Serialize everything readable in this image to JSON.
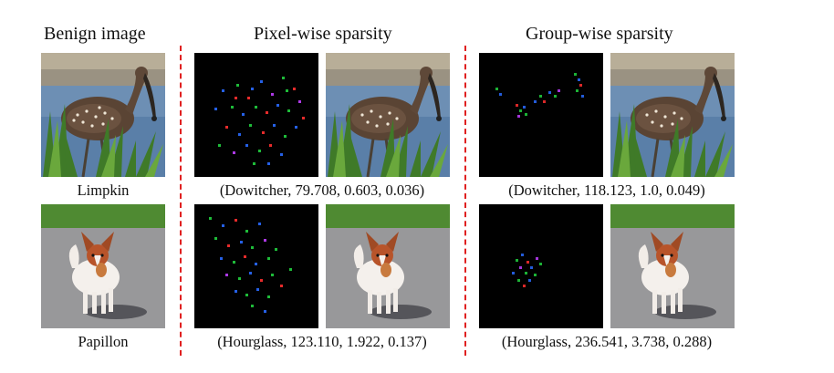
{
  "headers": {
    "benign": "Benign image",
    "pixel": "Pixel-wise sparsity",
    "group": "Group-wise sparsity"
  },
  "rows": [
    {
      "label": "Limpkin",
      "pixel_caption": "(Dowitcher, 79.708, 0.603, 0.036)",
      "group_caption": "(Dowitcher, 118.123, 1.0, 0.049)"
    },
    {
      "label": "Papillon",
      "pixel_caption": "(Hourglass, 123.110, 1.922, 0.137)",
      "group_caption": "(Hourglass, 236.541, 3.738, 0.288)"
    }
  ]
}
